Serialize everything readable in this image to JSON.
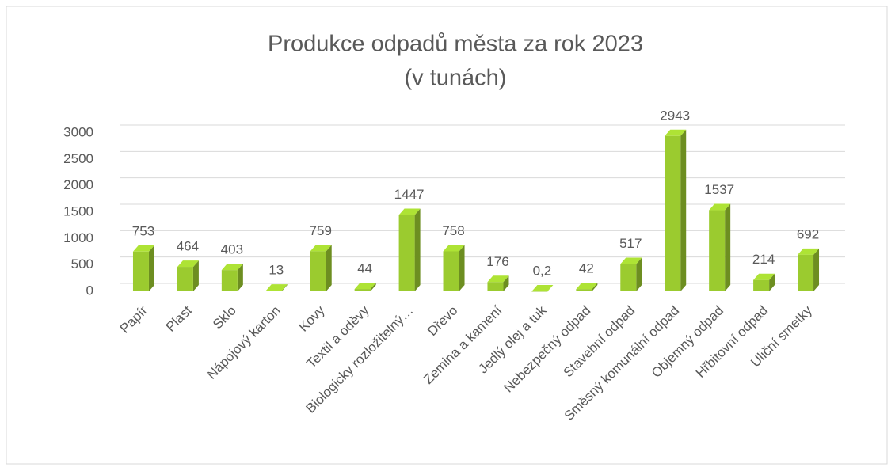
{
  "chart_data": {
    "type": "bar3d",
    "title": "Produkce odpadů města za rok 2023",
    "subtitle": "(v tunách)",
    "categories": [
      "Papír",
      "Plast",
      "Sklo",
      "Nápojový karton",
      "Kovy",
      "Textil a oděvy",
      "Biologicky rozložitelný…",
      "Dřevo",
      "Zemina a kamení",
      "Jedlý olej a tuk",
      "Nebezpečný odpad",
      "Stavební odpad",
      "Směsný komunální odpad",
      "Objemný odpad",
      "Hřbitovní odpad",
      "Uliční smetky"
    ],
    "values": [
      753,
      464,
      403,
      13,
      759,
      44,
      1447,
      758,
      176,
      0.2,
      42,
      517,
      2943,
      1537,
      214,
      692
    ],
    "value_labels": [
      "753",
      "464",
      "403",
      "13",
      "759",
      "44",
      "1447",
      "758",
      "176",
      "0,2",
      "42",
      "517",
      "2943",
      "1537",
      "214",
      "692"
    ],
    "color": "#9bcb2f",
    "ylim": [
      0,
      3000
    ],
    "yticks": [
      0,
      500,
      1000,
      1500,
      2000,
      2500,
      3000
    ],
    "grid": true
  }
}
